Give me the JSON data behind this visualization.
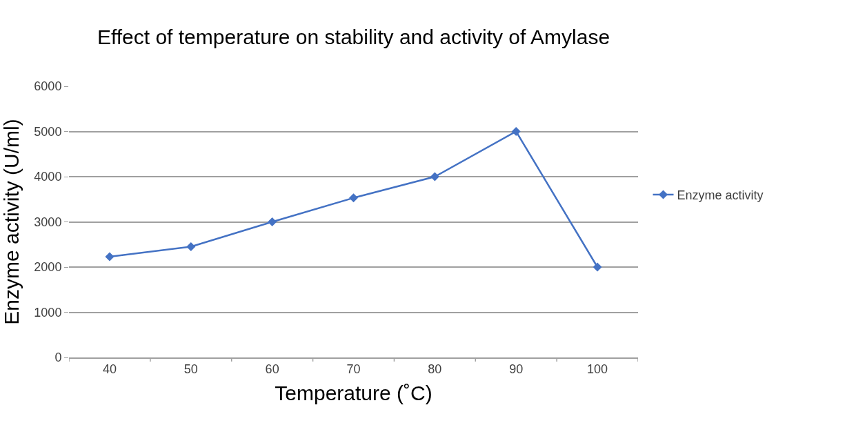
{
  "chart_data": {
    "type": "line",
    "title": "Effect of temperature on stability and activity of Amylase",
    "xlabel": "Temperature (˚C)",
    "ylabel": "Enzyme activity (U/ml)",
    "categories": [
      "40",
      "50",
      "60",
      "70",
      "80",
      "90",
      "100"
    ],
    "series": [
      {
        "name": "Enzyme activity",
        "color": "#4472c4",
        "values": [
          2230,
          2450,
          3000,
          3530,
          4000,
          5000,
          2000
        ]
      }
    ],
    "ylim": [
      0,
      6000
    ],
    "yticks": [
      0,
      1000,
      2000,
      3000,
      4000,
      5000,
      6000
    ],
    "grid": "y",
    "legend": "right",
    "marker": "diamond",
    "line_style": "solid"
  }
}
